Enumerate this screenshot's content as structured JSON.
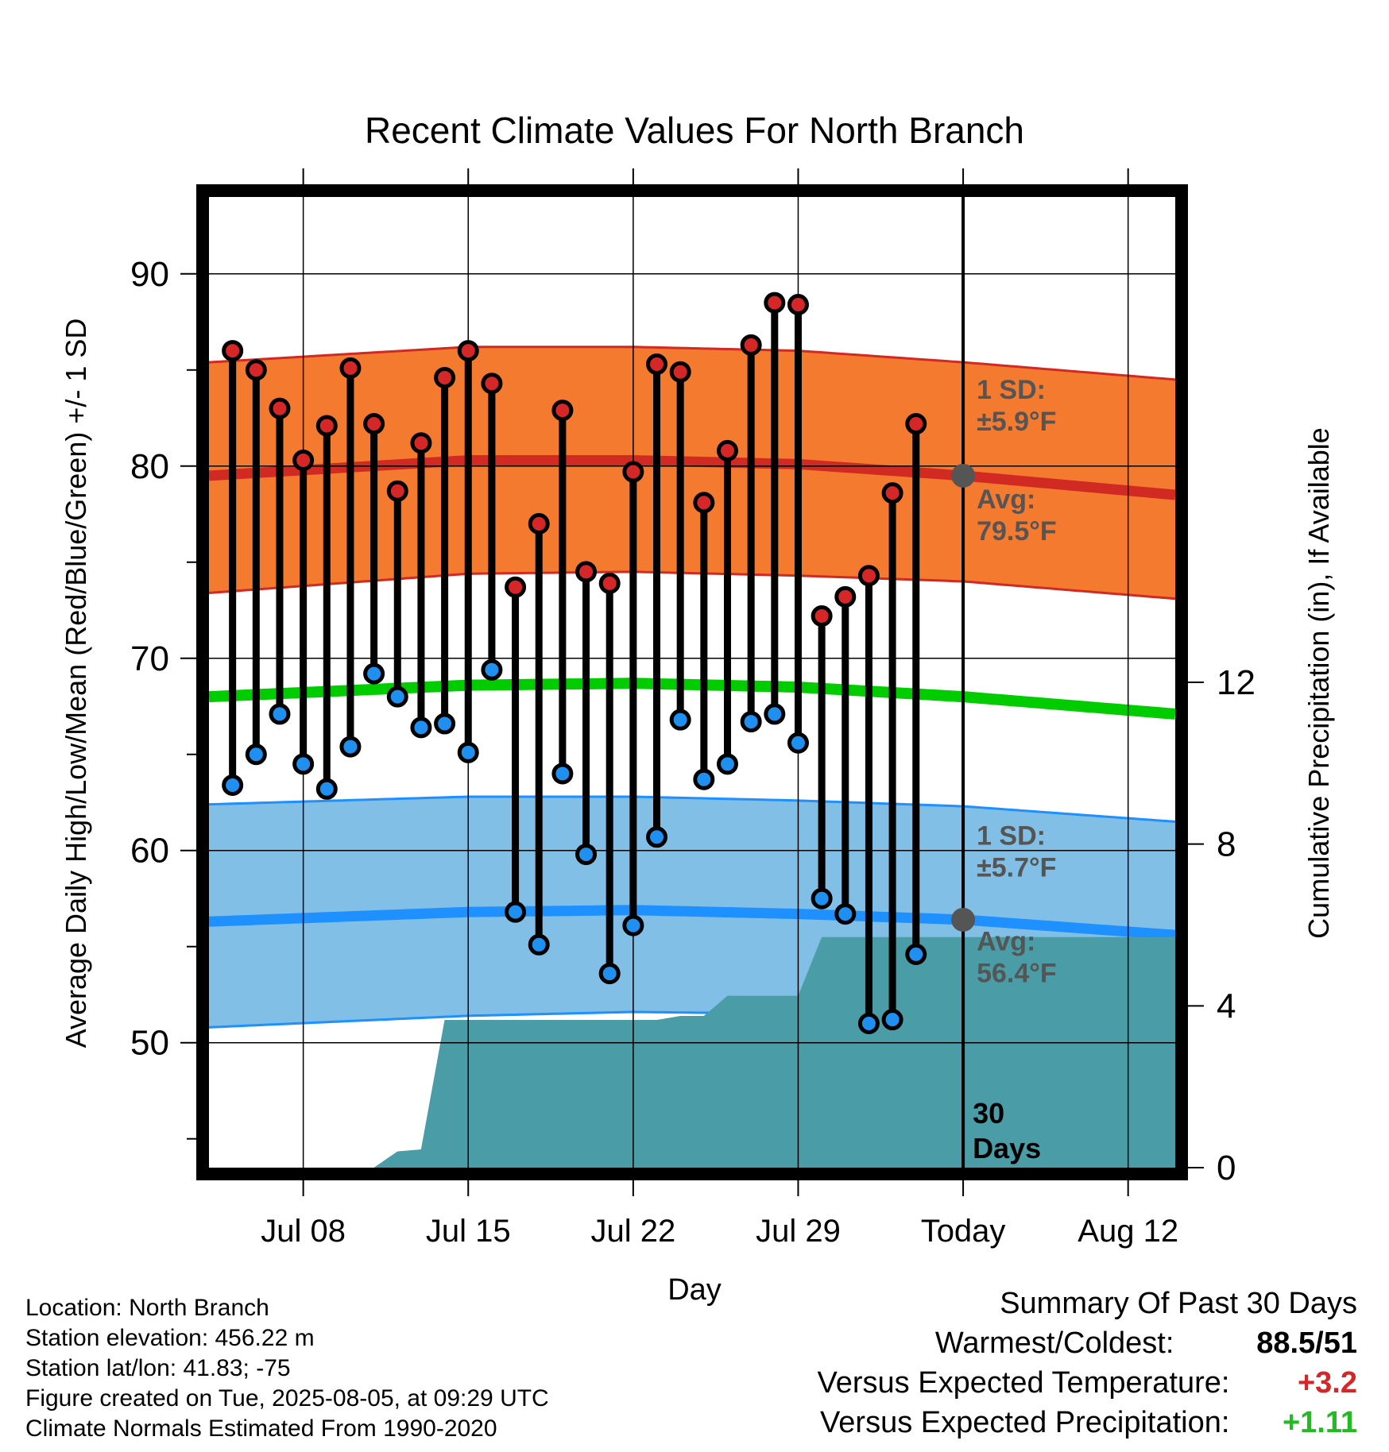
{
  "chart_data": {
    "type": "line",
    "title": "Recent Climate Values For North Branch",
    "xlabel": "Day",
    "ylabel": "Average Daily High/Low/Mean (Red/Blue/Green) +/- 1 SD",
    "y2label": "Cumulative Precipitation (in), If Available",
    "x_ticks": [
      {
        "date": "2025-07-08",
        "label": "Jul 08"
      },
      {
        "date": "2025-07-15",
        "label": "Jul 15"
      },
      {
        "date": "2025-07-22",
        "label": "Jul 22"
      },
      {
        "date": "2025-07-29",
        "label": "Jul 29"
      },
      {
        "date": "2025-08-05",
        "label": "Today"
      },
      {
        "date": "2025-08-12",
        "label": "Aug 12"
      }
    ],
    "xlim": [
      "2025-07-04",
      "2025-08-14"
    ],
    "ylim": [
      43.5,
      94
    ],
    "y_ticks": [
      50,
      60,
      70,
      80,
      90
    ],
    "y2lim": [
      0,
      24
    ],
    "y2_ticks": [
      0,
      4,
      8,
      12
    ],
    "grid": true,
    "today": "2025-08-05",
    "today_label_line1": "30",
    "today_label_line2": "Days",
    "normal_high": {
      "x": [
        "2025-07-04",
        "2025-07-15",
        "2025-07-22",
        "2025-07-29",
        "2025-08-05",
        "2025-08-14"
      ],
      "avg": [
        79.5,
        80.3,
        80.3,
        80.1,
        79.5,
        78.5
      ],
      "upper": [
        85.4,
        86.2,
        86.2,
        86.0,
        85.4,
        84.5
      ],
      "lower": [
        73.4,
        74.4,
        74.5,
        74.3,
        74.0,
        73.1
      ]
    },
    "normal_low": {
      "x": [
        "2025-07-04",
        "2025-07-15",
        "2025-07-22",
        "2025-07-29",
        "2025-08-05",
        "2025-08-14"
      ],
      "avg": [
        56.3,
        56.8,
        56.9,
        56.7,
        56.4,
        55.6
      ],
      "upper": [
        62.4,
        62.8,
        62.8,
        62.6,
        62.3,
        61.5
      ],
      "lower": [
        50.8,
        51.4,
        51.6,
        51.5,
        51.3,
        50.8
      ]
    },
    "normal_mean": {
      "x": [
        "2025-07-04",
        "2025-07-15",
        "2025-07-22",
        "2025-07-29",
        "2025-08-05",
        "2025-08-14"
      ],
      "values": [
        68.0,
        68.6,
        68.7,
        68.5,
        68.0,
        67.1
      ]
    },
    "high_annotation": {
      "line1": "1 SD:",
      "line2": "±5.9°F",
      "line3": "Avg:",
      "line4": "79.5°F"
    },
    "low_annotation": {
      "line1": "1 SD:",
      "line2": "±5.7°F",
      "line3": "Avg:",
      "line4": "56.4°F"
    },
    "daily": {
      "dates": [
        "2025-07-05",
        "2025-07-06",
        "2025-07-07",
        "2025-07-08",
        "2025-07-09",
        "2025-07-10",
        "2025-07-11",
        "2025-07-12",
        "2025-07-13",
        "2025-07-14",
        "2025-07-15",
        "2025-07-16",
        "2025-07-17",
        "2025-07-18",
        "2025-07-19",
        "2025-07-20",
        "2025-07-21",
        "2025-07-22",
        "2025-07-23",
        "2025-07-24",
        "2025-07-25",
        "2025-07-26",
        "2025-07-27",
        "2025-07-28",
        "2025-07-29",
        "2025-07-30",
        "2025-07-31",
        "2025-08-01",
        "2025-08-02",
        "2025-08-03",
        "2025-08-04"
      ],
      "high": [
        86.0,
        85.0,
        83.0,
        80.3,
        82.1,
        85.1,
        82.2,
        78.7,
        81.2,
        84.6,
        86.0,
        84.3,
        73.7,
        77.0,
        82.9,
        74.5,
        73.9,
        79.7,
        85.3,
        84.9,
        78.1,
        80.8,
        86.3,
        88.5,
        88.4,
        72.2,
        73.2,
        74.3,
        78.6,
        82.2,
        null
      ],
      "low": [
        63.4,
        65.0,
        67.1,
        64.5,
        63.2,
        65.4,
        69.2,
        68.0,
        66.4,
        66.6,
        65.1,
        69.4,
        56.8,
        55.1,
        64.0,
        59.8,
        53.6,
        56.1,
        60.7,
        66.8,
        63.7,
        64.5,
        66.7,
        67.1,
        65.6,
        57.5,
        56.7,
        51.0,
        51.2,
        54.6,
        null
      ]
    },
    "precipitation": {
      "x": [
        "2025-07-10",
        "2025-07-11",
        "2025-07-12",
        "2025-07-13",
        "2025-07-14",
        "2025-07-15",
        "2025-07-23",
        "2025-07-24",
        "2025-07-25",
        "2025-07-26",
        "2025-07-27",
        "2025-07-28",
        "2025-07-29",
        "2025-07-30",
        "2025-07-31",
        "2025-08-01",
        "2025-08-05",
        "2025-08-14"
      ],
      "values": [
        0,
        0,
        0.4,
        0.45,
        3.65,
        3.65,
        3.65,
        3.75,
        3.75,
        4.25,
        4.25,
        4.25,
        4.25,
        5.7,
        5.7,
        5.7,
        5.7,
        5.7
      ]
    },
    "colors": {
      "high_band": "#f47a30",
      "high_line": "#d12a22",
      "low_band": "#82bfe6",
      "low_line": "#1e90ff",
      "mean_line": "#00cc00",
      "precip": "#4a9ca6",
      "high_dot": "#d62728",
      "low_dot": "#1f8ff0",
      "annotation": "#555555",
      "today_marker": "#555555"
    }
  },
  "metadata_text": {
    "location": "Location: North Branch",
    "elevation": "Station elevation: 456.22 m",
    "latlon": "Station lat/lon: 41.83; -75",
    "created": "Figure created on Tue, 2025-08-05, at 09:29 UTC",
    "normals": "Climate Normals Estimated From 1990-2020"
  },
  "summary": {
    "title": "Summary Of Past 30 Days",
    "warmest_label": "Warmest/Coldest:",
    "warmest_value": "88.5/51",
    "temp_label": "Versus Expected Temperature:",
    "temp_value": "+3.2",
    "temp_color": "#d62728",
    "precip_label": "Versus Expected Precipitation:",
    "precip_value": "+1.11",
    "precip_color": "#22bb22"
  }
}
